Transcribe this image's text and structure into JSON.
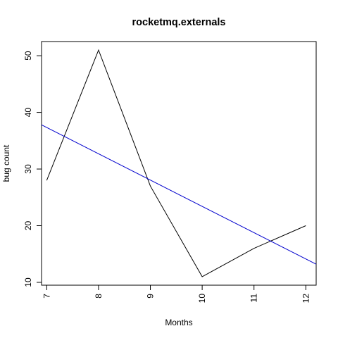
{
  "chart_data": {
    "type": "line",
    "title": "rocketmq.externals",
    "xlabel": "Months",
    "ylabel": "bug count",
    "x": [
      7,
      8,
      9,
      10,
      11,
      12
    ],
    "xlim": [
      6.9,
      12.2
    ],
    "ylim": [
      9.5,
      52.5
    ],
    "x_ticks": [
      7,
      8,
      9,
      10,
      11,
      12
    ],
    "y_ticks": [
      10,
      20,
      30,
      40,
      50
    ],
    "x_tick_labels": [
      "7",
      "8",
      "9",
      "10",
      "11",
      "12"
    ],
    "y_tick_labels": [
      "10",
      "20",
      "30",
      "40",
      "50"
    ],
    "grid": false,
    "series": [
      {
        "values": [
          28,
          51,
          27,
          11,
          16,
          20
        ],
        "color": "#000000"
      }
    ],
    "trend_line": {
      "color": "#0000cd",
      "x": [
        6.9,
        12.2
      ],
      "y": [
        37.8,
        13.2
      ]
    }
  }
}
